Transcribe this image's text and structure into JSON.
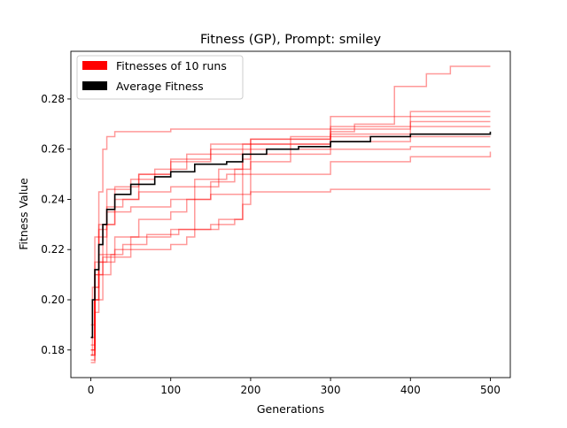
{
  "chart_data": {
    "type": "line",
    "title": "Fitness (GP), Prompt: smiley",
    "xlabel": "Generations",
    "ylabel": "Fitness Value",
    "xlim": [
      -25,
      525
    ],
    "ylim": [
      0.169,
      0.299
    ],
    "xticks": [
      0,
      100,
      200,
      300,
      400,
      500
    ],
    "yticks": [
      0.18,
      0.2,
      0.22,
      0.24,
      0.26,
      0.28
    ],
    "ytick_labels": [
      "0.18",
      "0.20",
      "0.22",
      "0.24",
      "0.26",
      "0.28"
    ],
    "grid": false,
    "legend_position": "top-left",
    "legend": [
      {
        "label": "Fitnesses of 10 runs",
        "color": "#ff0000"
      },
      {
        "label": "Average Fitness",
        "color": "#000000"
      }
    ],
    "series": [
      {
        "kind": "run",
        "color": "#ff0000",
        "points": [
          [
            0,
            0.178
          ],
          [
            2,
            0.205
          ],
          [
            5,
            0.225
          ],
          [
            10,
            0.243
          ],
          [
            15,
            0.26
          ],
          [
            20,
            0.265
          ],
          [
            30,
            0.267
          ],
          [
            60,
            0.267
          ],
          [
            100,
            0.268
          ],
          [
            200,
            0.268
          ],
          [
            300,
            0.269
          ],
          [
            500,
            0.269
          ]
        ]
      },
      {
        "kind": "run",
        "color": "#ff0000",
        "points": [
          [
            0,
            0.185
          ],
          [
            5,
            0.21
          ],
          [
            10,
            0.23
          ],
          [
            30,
            0.24
          ],
          [
            60,
            0.25
          ],
          [
            100,
            0.255
          ],
          [
            150,
            0.262
          ],
          [
            200,
            0.264
          ],
          [
            300,
            0.267
          ],
          [
            330,
            0.27
          ],
          [
            380,
            0.285
          ],
          [
            420,
            0.29
          ],
          [
            450,
            0.293
          ],
          [
            500,
            0.293
          ]
        ]
      },
      {
        "kind": "run",
        "color": "#ff0000",
        "points": [
          [
            0,
            0.175
          ],
          [
            5,
            0.195
          ],
          [
            10,
            0.215
          ],
          [
            20,
            0.235
          ],
          [
            50,
            0.237
          ],
          [
            100,
            0.24
          ],
          [
            150,
            0.242
          ],
          [
            200,
            0.243
          ],
          [
            300,
            0.244
          ],
          [
            500,
            0.244
          ]
        ]
      },
      {
        "kind": "run",
        "color": "#ff0000",
        "points": [
          [
            0,
            0.18
          ],
          [
            5,
            0.2
          ],
          [
            10,
            0.215
          ],
          [
            30,
            0.22
          ],
          [
            50,
            0.225
          ],
          [
            100,
            0.228
          ],
          [
            150,
            0.23
          ],
          [
            180,
            0.232
          ],
          [
            190,
            0.262
          ],
          [
            200,
            0.264
          ],
          [
            300,
            0.266
          ],
          [
            500,
            0.266
          ]
        ]
      },
      {
        "kind": "run",
        "color": "#ff0000",
        "points": [
          [
            0,
            0.182
          ],
          [
            5,
            0.205
          ],
          [
            10,
            0.218
          ],
          [
            30,
            0.225
          ],
          [
            60,
            0.232
          ],
          [
            100,
            0.235
          ],
          [
            120,
            0.24
          ],
          [
            150,
            0.247
          ],
          [
            180,
            0.252
          ],
          [
            200,
            0.255
          ],
          [
            250,
            0.262
          ],
          [
            300,
            0.265
          ],
          [
            400,
            0.271
          ],
          [
            500,
            0.271
          ]
        ]
      },
      {
        "kind": "run",
        "color": "#ff0000",
        "points": [
          [
            0,
            0.18
          ],
          [
            5,
            0.21
          ],
          [
            15,
            0.23
          ],
          [
            30,
            0.245
          ],
          [
            60,
            0.25
          ],
          [
            100,
            0.256
          ],
          [
            150,
            0.258
          ],
          [
            200,
            0.26
          ],
          [
            300,
            0.263
          ],
          [
            400,
            0.265
          ],
          [
            500,
            0.265
          ]
        ]
      },
      {
        "kind": "run",
        "color": "#ff0000",
        "points": [
          [
            0,
            0.176
          ],
          [
            5,
            0.2
          ],
          [
            15,
            0.217
          ],
          [
            50,
            0.22
          ],
          [
            100,
            0.222
          ],
          [
            120,
            0.225
          ],
          [
            130,
            0.245
          ],
          [
            160,
            0.252
          ],
          [
            190,
            0.256
          ],
          [
            200,
            0.258
          ],
          [
            300,
            0.26
          ],
          [
            400,
            0.261
          ],
          [
            500,
            0.261
          ]
        ]
      },
      {
        "kind": "run",
        "color": "#ff0000",
        "points": [
          [
            0,
            0.178
          ],
          [
            5,
            0.205
          ],
          [
            10,
            0.225
          ],
          [
            20,
            0.244
          ],
          [
            50,
            0.248
          ],
          [
            80,
            0.252
          ],
          [
            120,
            0.258
          ],
          [
            150,
            0.26
          ],
          [
            200,
            0.262
          ],
          [
            250,
            0.265
          ],
          [
            300,
            0.268
          ],
          [
            400,
            0.275
          ],
          [
            500,
            0.275
          ]
        ]
      },
      {
        "kind": "run",
        "color": "#ff0000",
        "points": [
          [
            0,
            0.19
          ],
          [
            5,
            0.215
          ],
          [
            10,
            0.228
          ],
          [
            20,
            0.237
          ],
          [
            40,
            0.24
          ],
          [
            60,
            0.243
          ],
          [
            100,
            0.245
          ],
          [
            130,
            0.248
          ],
          [
            170,
            0.25
          ],
          [
            200,
            0.262
          ],
          [
            300,
            0.273
          ],
          [
            400,
            0.273
          ],
          [
            500,
            0.273
          ]
        ]
      },
      {
        "kind": "run",
        "color": "#ff0000",
        "points": [
          [
            0,
            0.178
          ],
          [
            5,
            0.2
          ],
          [
            10,
            0.21
          ],
          [
            25,
            0.218
          ],
          [
            40,
            0.222
          ],
          [
            70,
            0.226
          ],
          [
            110,
            0.228
          ],
          [
            160,
            0.232
          ],
          [
            190,
            0.238
          ],
          [
            200,
            0.25
          ],
          [
            300,
            0.255
          ],
          [
            400,
            0.257
          ],
          [
            450,
            0.257
          ],
          [
            500,
            0.259
          ]
        ]
      },
      {
        "kind": "avg",
        "color": "#000000",
        "points": [
          [
            0,
            0.185
          ],
          [
            2,
            0.2
          ],
          [
            5,
            0.212
          ],
          [
            10,
            0.222
          ],
          [
            15,
            0.23
          ],
          [
            20,
            0.236
          ],
          [
            30,
            0.242
          ],
          [
            50,
            0.246
          ],
          [
            80,
            0.249
          ],
          [
            100,
            0.251
          ],
          [
            130,
            0.254
          ],
          [
            170,
            0.255
          ],
          [
            190,
            0.258
          ],
          [
            220,
            0.26
          ],
          [
            260,
            0.261
          ],
          [
            300,
            0.263
          ],
          [
            350,
            0.265
          ],
          [
            400,
            0.266
          ],
          [
            450,
            0.266
          ],
          [
            500,
            0.267
          ]
        ]
      }
    ]
  }
}
